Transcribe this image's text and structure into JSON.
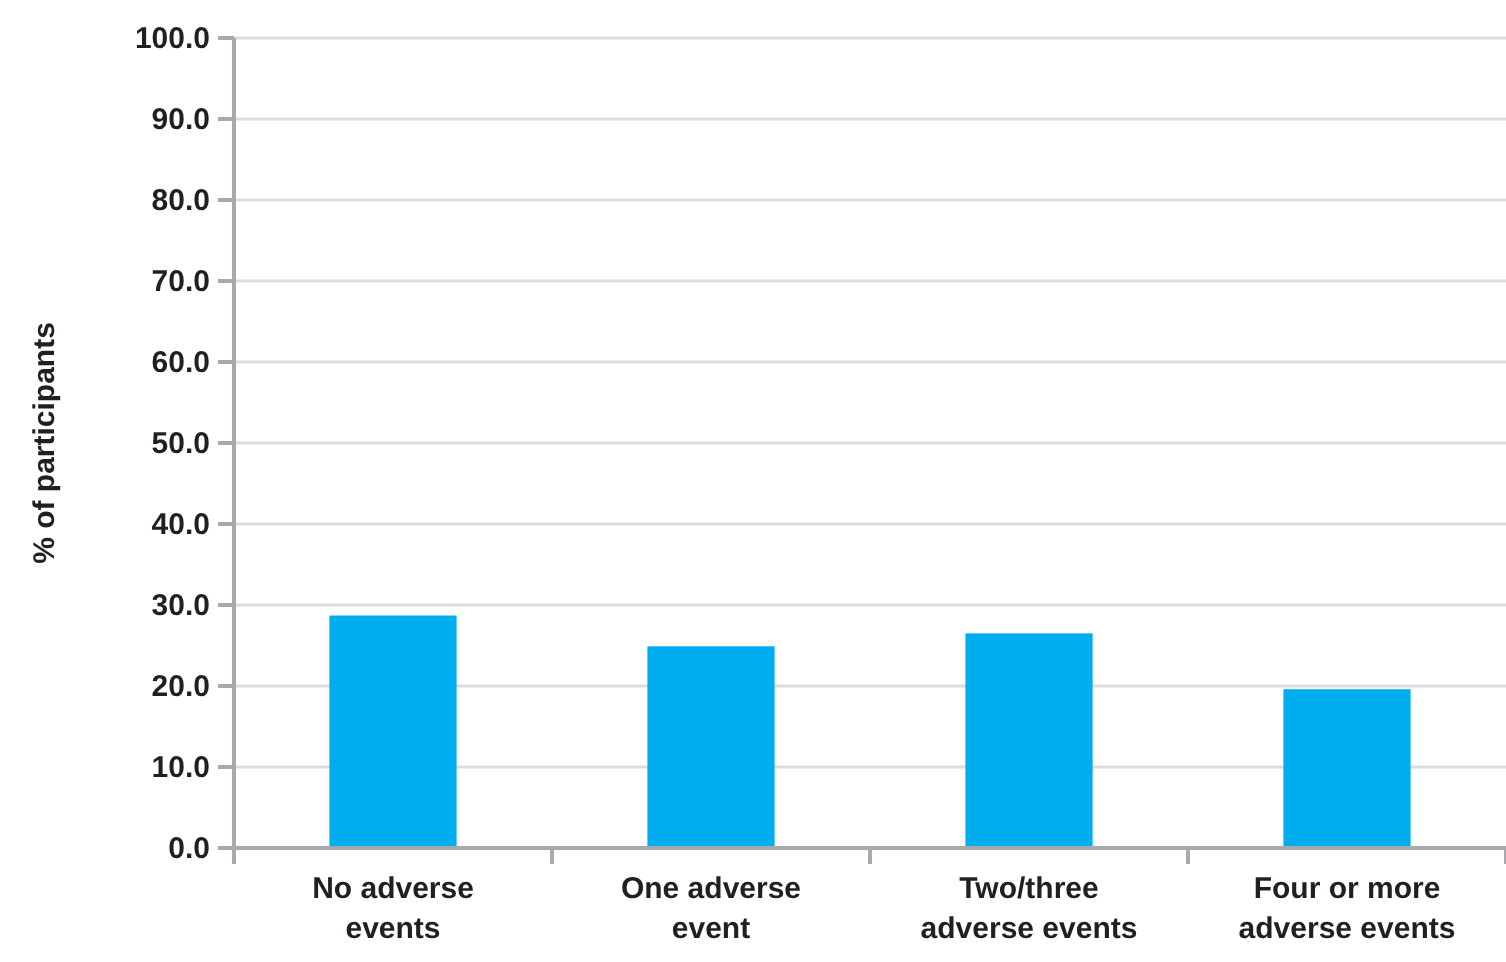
{
  "chart_data": {
    "type": "bar",
    "ylabel": "% of participants",
    "categories": [
      "No adverse events",
      "One adverse event",
      "Two/three adverse events",
      "Four or more adverse events"
    ],
    "values": [
      28.7,
      24.9,
      26.5,
      19.6
    ],
    "color": "#00aeef",
    "ylim": [
      0,
      100
    ],
    "yticks": [
      {
        "value": 0,
        "label": "0.0"
      },
      {
        "value": 10,
        "label": "10.0"
      },
      {
        "value": 20,
        "label": "20.0"
      },
      {
        "value": 30,
        "label": "30.0"
      },
      {
        "value": 40,
        "label": "40.0"
      },
      {
        "value": 50,
        "label": "50.0"
      },
      {
        "value": 60,
        "label": "60.0"
      },
      {
        "value": 70,
        "label": "70.0"
      },
      {
        "value": 80,
        "label": "80.0"
      },
      {
        "value": 90,
        "label": "90.0"
      },
      {
        "value": 100,
        "label": "100.0"
      }
    ],
    "grid": "y"
  }
}
